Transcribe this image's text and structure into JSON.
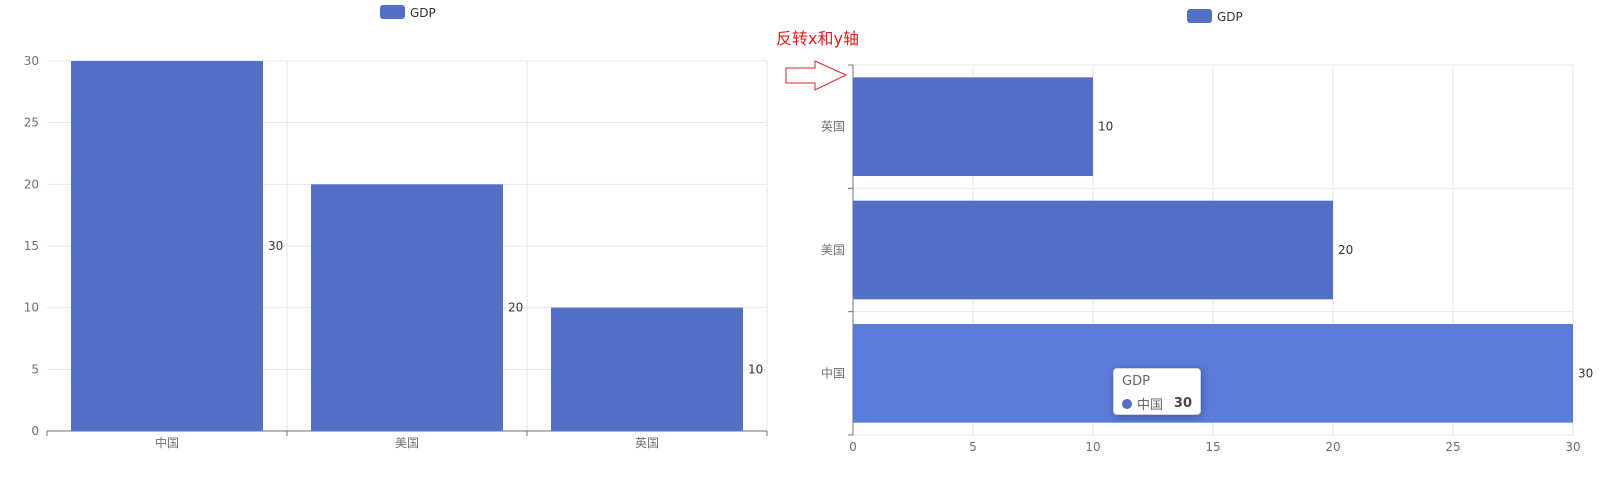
{
  "annotation": {
    "text": "反转x和y轴"
  },
  "colors": {
    "bar": "#5470c6",
    "bar_highlight": "#5b7bd8",
    "grid": "#e0e6f1",
    "axis": "#6e7079",
    "annotation": "#e02020"
  },
  "chart_data": [
    {
      "type": "bar",
      "orientation": "vertical",
      "categories": [
        "中国",
        "美国",
        "英国"
      ],
      "series": [
        {
          "name": "GDP",
          "values": [
            30,
            20,
            10
          ]
        }
      ],
      "legend": [
        "GDP"
      ],
      "legend_position": "top-center",
      "ylim": [
        0,
        30
      ],
      "y_ticks": [
        "0",
        "5",
        "10",
        "15",
        "20",
        "25",
        "30"
      ],
      "data_labels": [
        "30",
        "20",
        "10"
      ],
      "grid": true
    },
    {
      "type": "bar",
      "orientation": "horizontal",
      "categories": [
        "中国",
        "美国",
        "英国"
      ],
      "series": [
        {
          "name": "GDP",
          "values": [
            30,
            20,
            10
          ]
        }
      ],
      "legend": [
        "GDP"
      ],
      "legend_position": "top-center",
      "xlim": [
        0,
        30
      ],
      "x_ticks": [
        "0",
        "5",
        "10",
        "15",
        "20",
        "25",
        "30"
      ],
      "data_labels": [
        "30",
        "20",
        "10"
      ],
      "grid": true
    }
  ],
  "tooltip": {
    "title": "GDP",
    "name": "中国",
    "value": "30"
  }
}
